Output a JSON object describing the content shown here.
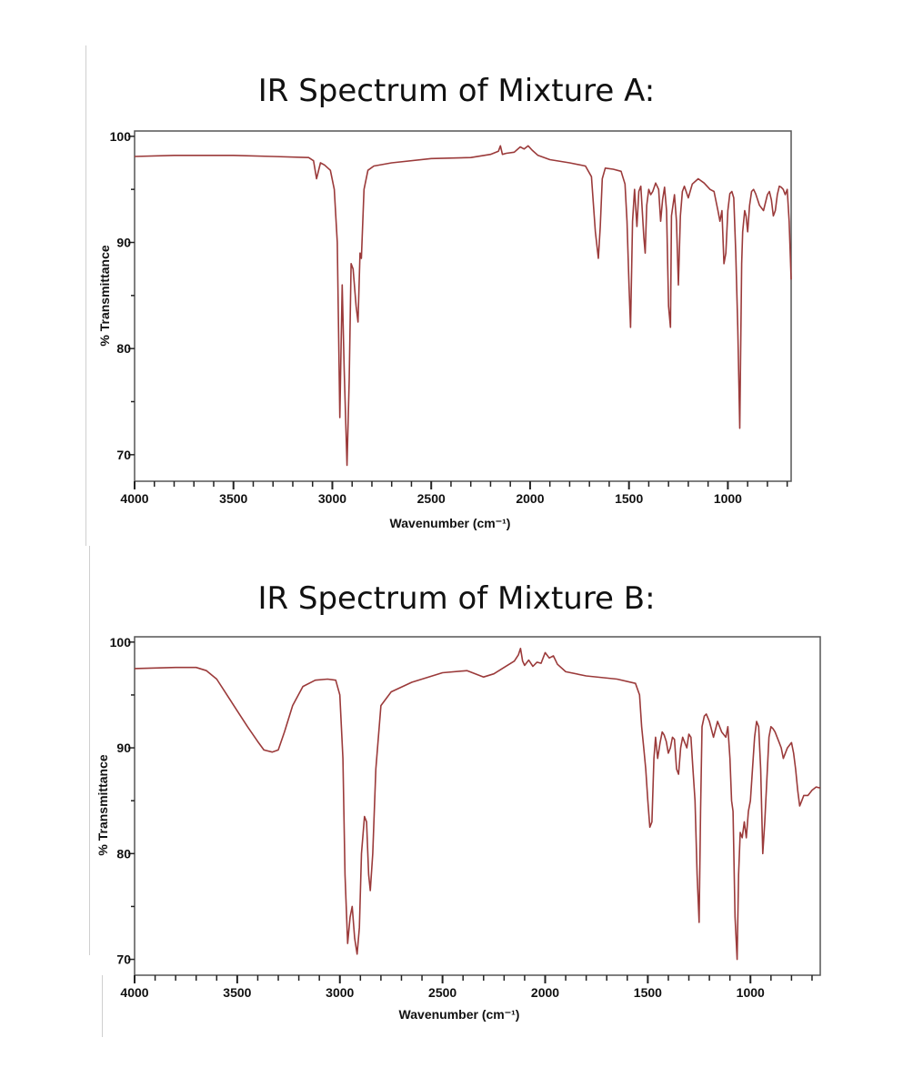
{
  "chart_data": [
    {
      "type": "line",
      "title": "IR Spectrum of Mixture A:",
      "xlabel": "Wavenumber (cm⁻¹)",
      "ylabel": "% Transmittance",
      "x_reversed": true,
      "xlim": [
        4000,
        680
      ],
      "ylim": [
        67.5,
        100.5
      ],
      "x_ticks": [
        4000,
        3500,
        3000,
        2500,
        2000,
        1500,
        1000
      ],
      "y_ticks": [
        70,
        80,
        90,
        100
      ],
      "grid": false,
      "color": "#9b3a3a",
      "series": [
        {
          "x": [
            4000,
            3800,
            3500,
            3300,
            3120,
            3095,
            3080,
            3060,
            3040,
            3010,
            2990,
            2975,
            2962,
            2950,
            2940,
            2926,
            2915,
            2905,
            2895,
            2880,
            2870,
            2860,
            2853,
            2840,
            2820,
            2790,
            2700,
            2500,
            2300,
            2200,
            2160,
            2150,
            2140,
            2120,
            2080,
            2050,
            2030,
            2010,
            1990,
            1960,
            1900,
            1800,
            1720,
            1690,
            1670,
            1655,
            1645,
            1635,
            1620,
            1580,
            1540,
            1520,
            1510,
            1500,
            1492,
            1482,
            1472,
            1460,
            1450,
            1440,
            1425,
            1418,
            1410,
            1400,
            1390,
            1380,
            1365,
            1350,
            1340,
            1330,
            1320,
            1310,
            1300,
            1290,
            1285,
            1270,
            1260,
            1250,
            1240,
            1230,
            1220,
            1200,
            1180,
            1150,
            1120,
            1090,
            1070,
            1050,
            1040,
            1030,
            1020,
            1010,
            1000,
            990,
            980,
            970,
            960,
            950,
            940,
            930,
            925,
            915,
            908,
            900,
            890,
            880,
            870,
            860,
            840,
            820,
            800,
            790,
            780,
            770,
            760,
            750,
            740,
            730,
            720,
            710,
            700,
            690,
            680
          ],
          "y": [
            98.1,
            98.2,
            98.2,
            98.1,
            98.0,
            97.7,
            96.0,
            97.5,
            97.3,
            96.8,
            95.0,
            90.0,
            73.5,
            86.0,
            78.0,
            69.0,
            77.0,
            88.0,
            87.5,
            84.0,
            82.5,
            89.0,
            88.5,
            95.0,
            96.8,
            97.2,
            97.5,
            97.9,
            98.0,
            98.3,
            98.6,
            99.1,
            98.3,
            98.4,
            98.5,
            99.0,
            98.8,
            99.1,
            98.7,
            98.2,
            97.8,
            97.5,
            97.2,
            96.2,
            91.0,
            88.5,
            91.5,
            96.0,
            97.0,
            96.9,
            96.7,
            95.5,
            92.0,
            86.0,
            82.0,
            92.0,
            95.0,
            91.5,
            94.8,
            95.3,
            90.5,
            89.0,
            93.5,
            95.0,
            94.5,
            94.8,
            95.6,
            95.0,
            92.0,
            94.0,
            95.2,
            93.0,
            84.0,
            82.0,
            92.5,
            94.5,
            92.0,
            86.0,
            92.5,
            94.8,
            95.3,
            94.2,
            95.5,
            96.0,
            95.6,
            95.0,
            94.8,
            93.0,
            92.0,
            93.0,
            88.0,
            89.0,
            93.0,
            94.6,
            94.8,
            94.2,
            89.0,
            82.0,
            72.5,
            88.0,
            91.0,
            93.0,
            92.5,
            91.0,
            93.5,
            94.8,
            95.0,
            94.6,
            93.5,
            93.0,
            94.5,
            94.8,
            94.0,
            92.5,
            93.0,
            94.5,
            95.3,
            95.2,
            95.0,
            94.5,
            95.0,
            92.0,
            86.5
          ]
        }
      ]
    },
    {
      "type": "line",
      "title": "IR Spectrum of Mixture B:",
      "xlabel": "Wavenumber (cm⁻¹)",
      "ylabel": "% Transmittance",
      "x_reversed": true,
      "xlim": [
        4000,
        660
      ],
      "ylim": [
        68.5,
        100.5
      ],
      "x_ticks": [
        4000,
        3500,
        3000,
        2500,
        2000,
        1500,
        1000
      ],
      "y_ticks": [
        70,
        80,
        90,
        100
      ],
      "grid": false,
      "color": "#9b3a3a",
      "series": [
        {
          "x": [
            4000,
            3800,
            3700,
            3650,
            3600,
            3550,
            3500,
            3450,
            3400,
            3370,
            3330,
            3300,
            3270,
            3230,
            3180,
            3120,
            3060,
            3020,
            3000,
            2985,
            2975,
            2962,
            2950,
            2940,
            2928,
            2916,
            2905,
            2895,
            2880,
            2870,
            2860,
            2852,
            2840,
            2825,
            2800,
            2750,
            2650,
            2500,
            2380,
            2300,
            2250,
            2200,
            2150,
            2130,
            2120,
            2110,
            2100,
            2080,
            2060,
            2040,
            2020,
            2000,
            1980,
            1960,
            1940,
            1900,
            1800,
            1650,
            1560,
            1540,
            1530,
            1520,
            1510,
            1500,
            1490,
            1480,
            1470,
            1462,
            1452,
            1440,
            1430,
            1420,
            1410,
            1400,
            1390,
            1380,
            1370,
            1360,
            1350,
            1340,
            1330,
            1320,
            1310,
            1300,
            1290,
            1280,
            1270,
            1260,
            1250,
            1243,
            1236,
            1225,
            1215,
            1200,
            1180,
            1160,
            1140,
            1120,
            1110,
            1100,
            1092,
            1085,
            1075,
            1065,
            1058,
            1050,
            1040,
            1030,
            1020,
            1010,
            1000,
            990,
            980,
            970,
            960,
            950,
            940,
            930,
            920,
            910,
            900,
            890,
            880,
            870,
            860,
            850,
            840,
            820,
            800,
            790,
            780,
            770,
            760,
            750,
            740,
            720,
            700,
            680,
            660
          ],
          "y": [
            97.5,
            97.6,
            97.6,
            97.3,
            96.5,
            95.0,
            93.5,
            92.0,
            90.6,
            89.8,
            89.6,
            89.8,
            91.5,
            94.0,
            95.8,
            96.4,
            96.5,
            96.4,
            95.0,
            89.0,
            78.0,
            71.5,
            74.0,
            75.0,
            72.0,
            70.5,
            73.0,
            80.0,
            83.5,
            83.0,
            78.0,
            76.5,
            80.0,
            88.0,
            94.0,
            95.3,
            96.2,
            97.1,
            97.3,
            96.7,
            97.0,
            97.6,
            98.2,
            98.8,
            99.4,
            98.2,
            97.8,
            98.3,
            97.7,
            98.1,
            98.0,
            99.0,
            98.5,
            98.7,
            97.9,
            97.2,
            96.8,
            96.5,
            96.1,
            95.0,
            92.0,
            90.0,
            88.0,
            85.0,
            82.5,
            83.0,
            89.0,
            91.0,
            89.0,
            90.5,
            91.5,
            91.2,
            90.6,
            89.5,
            90.0,
            91.0,
            90.8,
            88.0,
            87.5,
            90.0,
            91.0,
            90.5,
            90.0,
            91.3,
            91.0,
            88.0,
            85.0,
            78.0,
            73.5,
            84.0,
            92.0,
            93.0,
            93.2,
            92.5,
            91.0,
            92.5,
            91.5,
            91.0,
            92.0,
            89.0,
            85.0,
            84.0,
            74.0,
            70.0,
            78.0,
            82.0,
            81.5,
            83.0,
            81.5,
            84.0,
            85.0,
            88.0,
            91.0,
            92.5,
            92.0,
            88.0,
            80.0,
            83.0,
            87.0,
            91.0,
            92.0,
            91.8,
            91.5,
            91.0,
            90.5,
            90.0,
            89.0,
            90.0,
            90.5,
            89.5,
            88.0,
            86.0,
            84.5,
            85.0,
            85.5,
            85.5,
            86.0,
            86.3,
            86.2
          ]
        }
      ]
    }
  ]
}
